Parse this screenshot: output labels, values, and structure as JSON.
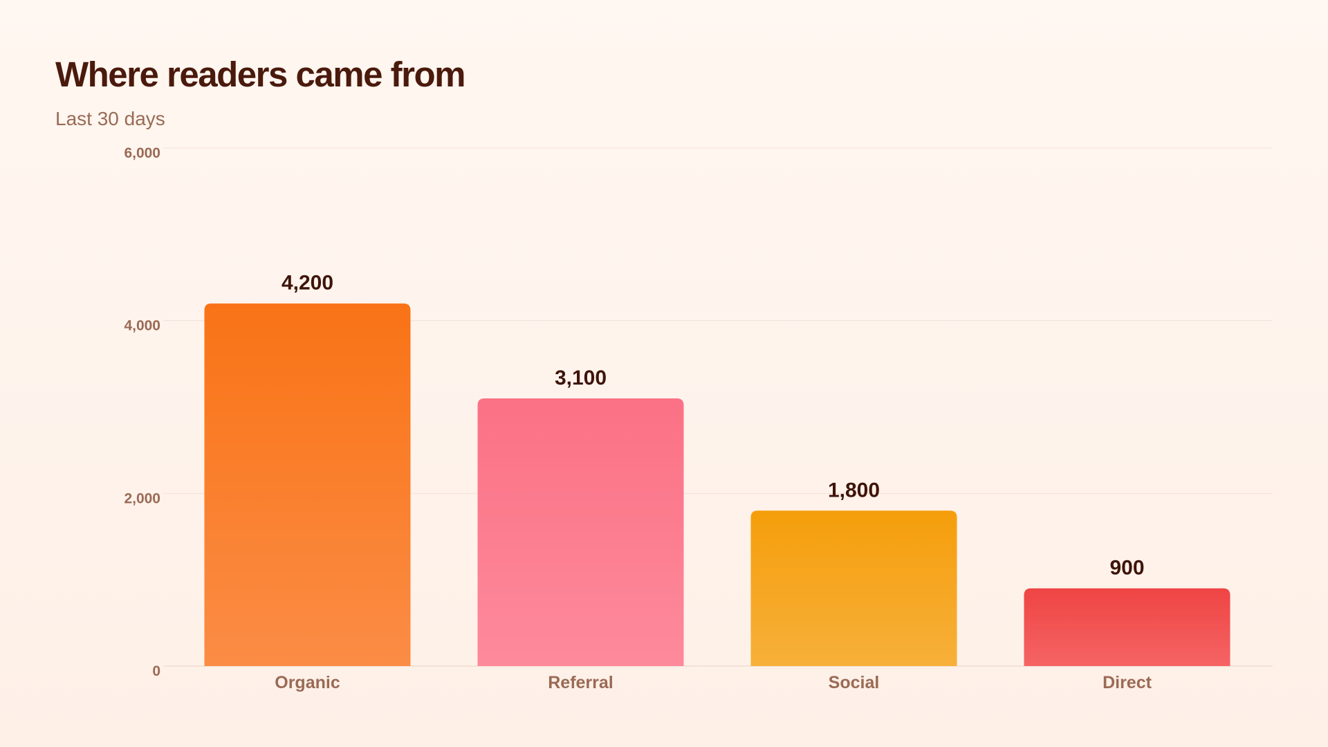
{
  "chart_data": {
    "type": "bar",
    "title": "Where readers came from",
    "subtitle": "Last 30 days",
    "categories": [
      "Organic",
      "Referral",
      "Social",
      "Direct"
    ],
    "values": [
      4200,
      3100,
      1800,
      900
    ],
    "value_labels": [
      "4,200",
      "3,100",
      "1,800",
      "900"
    ],
    "ylim": [
      0,
      6000
    ],
    "yticks": [
      0,
      2000,
      4000,
      6000
    ],
    "ytick_labels": [
      "0",
      "2,000",
      "4,000",
      "6,000"
    ],
    "grid": true,
    "xlabel": "",
    "ylabel": "",
    "colors": [
      {
        "top": "#f97316",
        "bottom": "#fb8c45"
      },
      {
        "top": "#fb7185",
        "bottom": "#fd8a9b"
      },
      {
        "top": "#f59e0b",
        "bottom": "#f7b03a"
      },
      {
        "top": "#ef4444",
        "bottom": "#f56464"
      }
    ]
  }
}
